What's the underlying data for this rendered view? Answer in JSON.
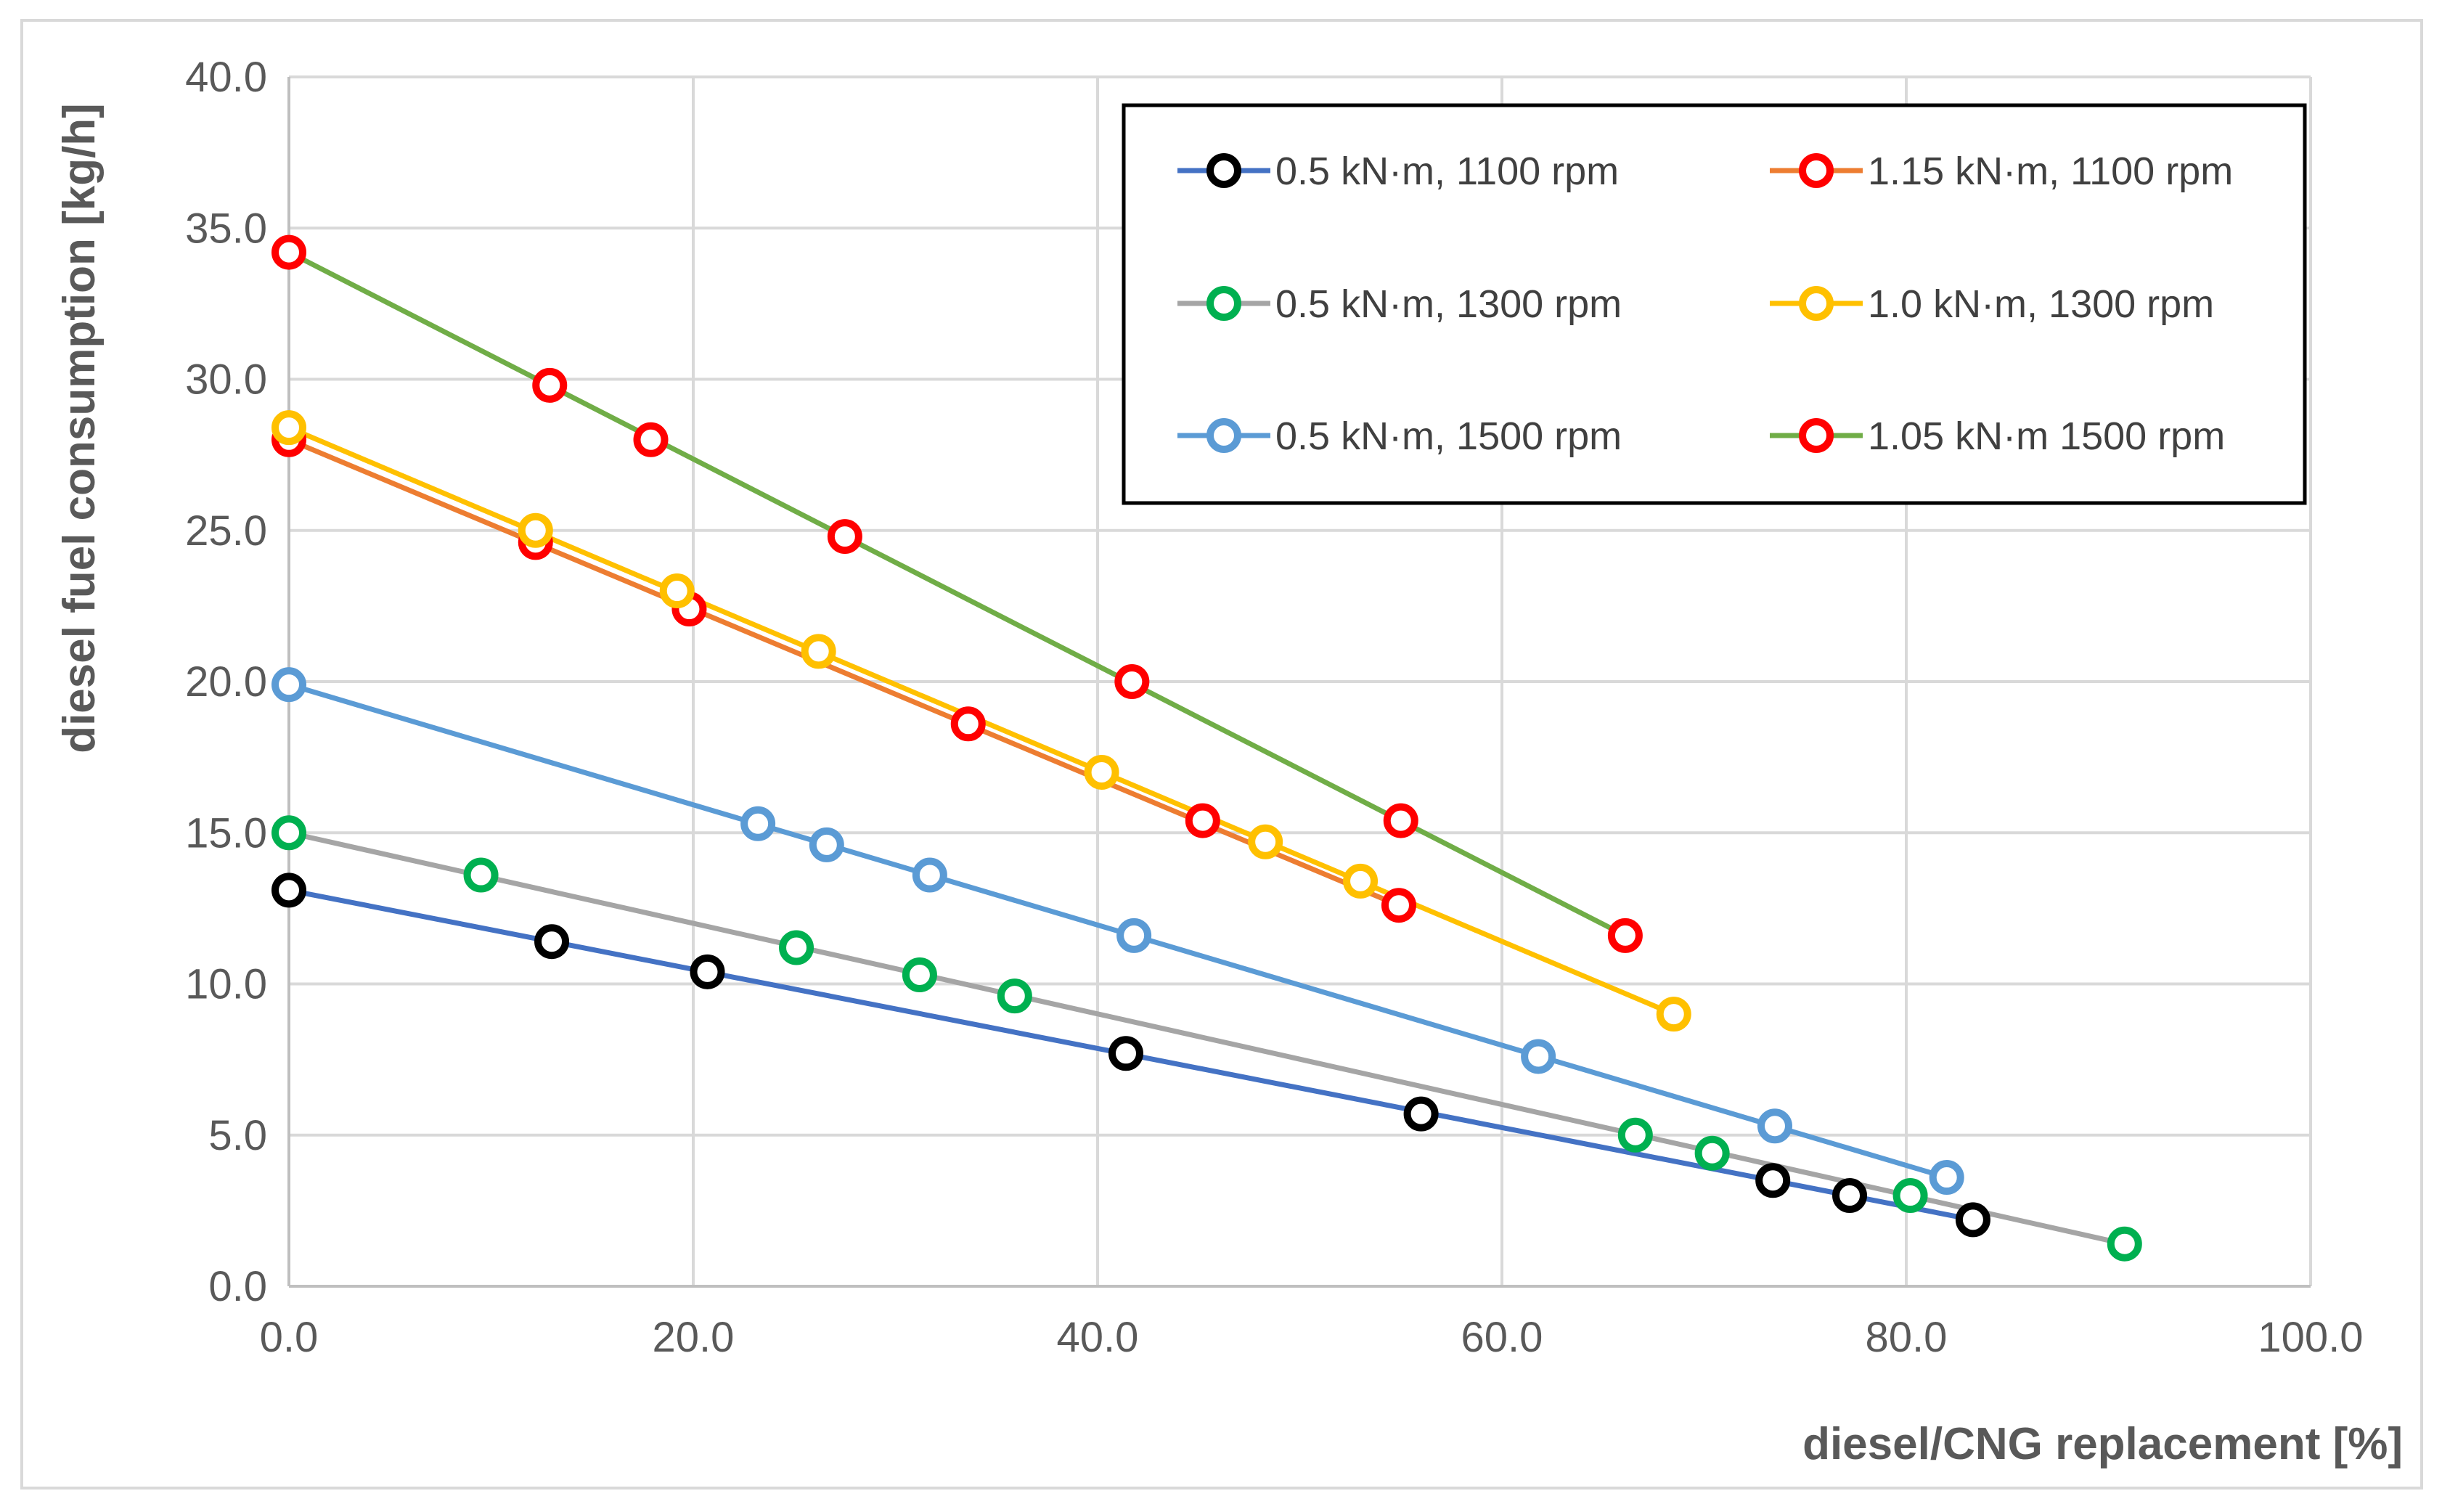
{
  "chart_data": {
    "type": "line",
    "title": "",
    "xlabel": "diesel/CNG replacement [%]",
    "ylabel": "diesel fuel consumption [kg/h]",
    "xlim": [
      0,
      100
    ],
    "ylim": [
      0,
      40
    ],
    "grid": true,
    "legend_position": "top-right",
    "x_ticks": [
      "0.0",
      "20.0",
      "40.0",
      "60.0",
      "80.0",
      "100.0"
    ],
    "y_ticks": [
      "0.0",
      "5.0",
      "10.0",
      "15.0",
      "20.0",
      "25.0",
      "30.0",
      "35.0",
      "40.0"
    ],
    "series": [
      {
        "name": "0.5 kN·m, 1100 rpm",
        "line_color": "#4472c4",
        "marker_color": "#000000",
        "points": [
          [
            0,
            13.1
          ],
          [
            13,
            11.4
          ],
          [
            20.7,
            10.4
          ],
          [
            41.4,
            7.7
          ],
          [
            56,
            5.7
          ],
          [
            73.4,
            3.5
          ],
          [
            77.2,
            3.0
          ],
          [
            83.3,
            2.2
          ]
        ],
        "fit": [
          [
            0,
            13.1
          ],
          [
            83.3,
            2.2
          ]
        ]
      },
      {
        "name": "1.15 kN·m, 1100 rpm",
        "line_color": "#ed7d31",
        "marker_color": "#ff0000",
        "points": [
          [
            0,
            28.0
          ],
          [
            12.2,
            24.6
          ],
          [
            19.8,
            22.4
          ],
          [
            33.6,
            18.6
          ],
          [
            45.2,
            15.4
          ],
          [
            54.9,
            12.6
          ]
        ],
        "fit": [
          [
            0,
            28.0
          ],
          [
            54.9,
            12.6
          ]
        ]
      },
      {
        "name": "0.5 kN·m, 1300 rpm",
        "line_color": "#a5a5a5",
        "marker_color": "#00b050",
        "points": [
          [
            0,
            15.0
          ],
          [
            9.5,
            13.6
          ],
          [
            25.1,
            11.2
          ],
          [
            31.2,
            10.3
          ],
          [
            35.9,
            9.6
          ],
          [
            66.6,
            5.0
          ],
          [
            70.4,
            4.4
          ],
          [
            80.2,
            3.0
          ],
          [
            90.8,
            1.4
          ]
        ],
        "fit": [
          [
            0,
            15.0
          ],
          [
            90.8,
            1.4
          ]
        ]
      },
      {
        "name": "1.0 kN·m, 1300 rpm",
        "line_color": "#ffc000",
        "marker_color": "#ffc000",
        "points": [
          [
            0,
            28.4
          ],
          [
            12.2,
            25.0
          ],
          [
            19.2,
            23.0
          ],
          [
            26.2,
            21.0
          ],
          [
            40.2,
            17.0
          ],
          [
            48.3,
            14.7
          ],
          [
            53,
            13.4
          ],
          [
            68.5,
            9.0
          ]
        ],
        "fit": [
          [
            0,
            28.4
          ],
          [
            68.5,
            9.0
          ]
        ]
      },
      {
        "name": "0.5 kN·m, 1500 rpm",
        "line_color": "#5b9bd5",
        "marker_color": "#5b9bd5",
        "points": [
          [
            0,
            19.9
          ],
          [
            23.2,
            15.3
          ],
          [
            26.6,
            14.6
          ],
          [
            31.7,
            13.6
          ],
          [
            41.8,
            11.6
          ],
          [
            61.8,
            7.6
          ],
          [
            73.5,
            5.3
          ],
          [
            82,
            3.6
          ]
        ],
        "fit": [
          [
            0,
            19.9
          ],
          [
            82,
            3.6
          ]
        ]
      },
      {
        "name": "1.05 kN·m 1500 rpm",
        "line_color": "#70ad47",
        "marker_color": "#ff0000",
        "points": [
          [
            0,
            34.2
          ],
          [
            12.9,
            29.8
          ],
          [
            17.9,
            28.0
          ],
          [
            27.5,
            24.8
          ],
          [
            41.7,
            20.0
          ],
          [
            55,
            15.4
          ],
          [
            66.1,
            11.6
          ]
        ],
        "fit": [
          [
            0,
            34.2
          ],
          [
            66.1,
            11.6
          ]
        ]
      }
    ],
    "legend_order": [
      0,
      1,
      2,
      3,
      4,
      5
    ]
  }
}
